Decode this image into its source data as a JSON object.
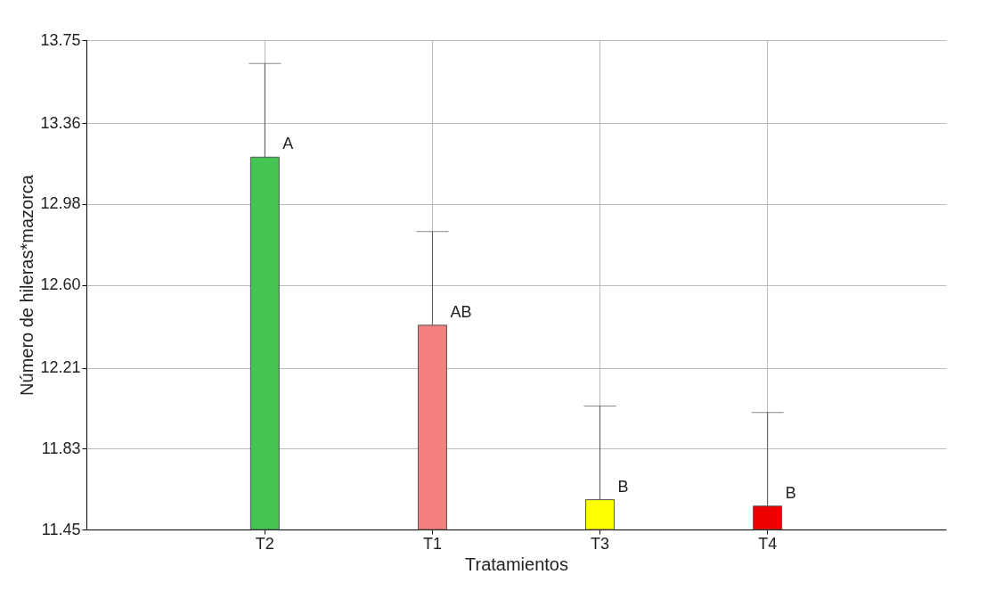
{
  "chart_data": {
    "type": "bar",
    "xlabel": "Tratamientos",
    "ylabel": "Número de hileras*mazorca",
    "categories": [
      "T2",
      "T1",
      "T3",
      "T4"
    ],
    "values": [
      13.2,
      12.41,
      11.59,
      11.56
    ],
    "colors": [
      "#44c553",
      "#f47f7f",
      "#ffff00",
      "#ee0000"
    ],
    "errors": [
      [
        13.2,
        13.64
      ],
      [
        12.41,
        12.85
      ],
      [
        11.59,
        12.03
      ],
      [
        11.56,
        12.0
      ]
    ],
    "ylim": [
      11.45,
      13.75
    ],
    "yticks": [
      11.45,
      11.83,
      12.21,
      {
        "value": 12.6,
        "label": "12.60"
      },
      12.98,
      13.36,
      13.75
    ],
    "grid": true,
    "annotations": [
      {
        "text": "A",
        "x": "T2",
        "y": 13.2
      },
      {
        "text": "AB",
        "x": "T1",
        "y": 12.41
      },
      {
        "text": "B",
        "x": "T3",
        "y": 11.59
      },
      {
        "text": "B",
        "x": "T4",
        "y": 11.56
      }
    ]
  }
}
